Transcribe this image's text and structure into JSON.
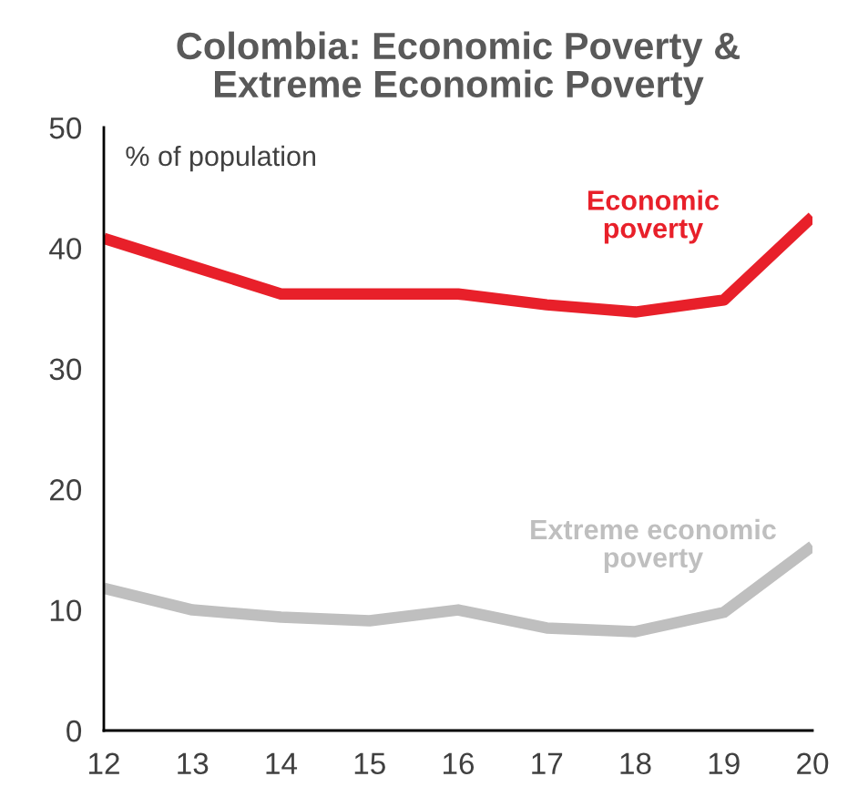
{
  "chart_data": {
    "type": "line",
    "title": "Colombia: Economic Poverty &\nExtreme Economic Poverty",
    "x": [
      12,
      13,
      14,
      15,
      16,
      17,
      18,
      19,
      20
    ],
    "series": [
      {
        "name": "Economic\npoverty",
        "color": "#e8202a",
        "values": [
          40.8,
          38.5,
          36.2,
          36.2,
          36.2,
          35.3,
          34.7,
          35.7,
          42.6
        ]
      },
      {
        "name": "Extreme economic\npoverty",
        "color": "#bfbfbf",
        "values": [
          11.8,
          10.0,
          9.4,
          9.1,
          10.0,
          8.5,
          8.2,
          9.8,
          15.3
        ]
      }
    ],
    "annotations": [
      "% of population"
    ],
    "xlim": [
      12,
      20
    ],
    "ylim": [
      0,
      50
    ],
    "xticks": [
      12,
      13,
      14,
      15,
      16,
      17,
      18,
      19,
      20
    ],
    "yticks": [
      0,
      10,
      20,
      30,
      40,
      50
    ],
    "grid": false,
    "legend": false,
    "marker": "none",
    "line_style": "solid"
  }
}
